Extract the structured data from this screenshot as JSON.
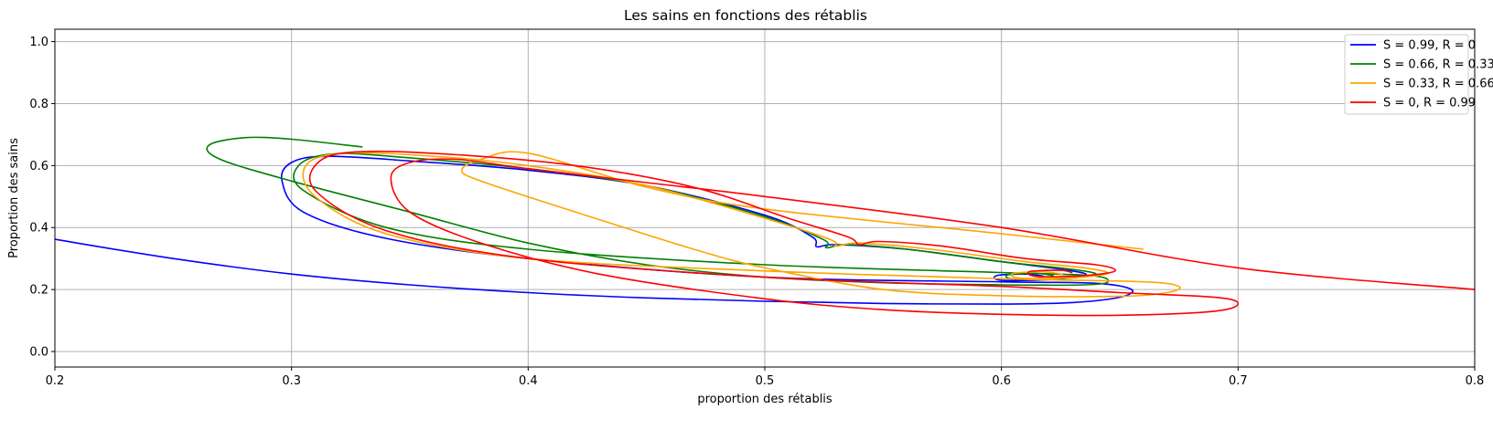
{
  "chart_data": {
    "type": "line",
    "title": "Les sains en fonctions des rétablis",
    "xlabel": "proportion des rétablis",
    "ylabel": "Proportion des sains",
    "xlim": [
      0.2,
      0.8
    ],
    "ylim": [
      -0.05,
      1.04
    ],
    "xticks": [
      "0.2",
      "0.3",
      "0.4",
      "0.5",
      "0.6",
      "0.7",
      "0.8"
    ],
    "yticks": [
      "0.0",
      "0.2",
      "0.4",
      "0.6",
      "0.8",
      "1.0"
    ],
    "grid": true,
    "legend_position": "top-right",
    "series": [
      {
        "name": "S = 0.99, R = 0",
        "color": "#0000ff",
        "points": [
          [
            0.2,
            0.362
          ],
          [
            0.25,
            0.3
          ],
          [
            0.3,
            0.25
          ],
          [
            0.35,
            0.215
          ],
          [
            0.4,
            0.19
          ],
          [
            0.45,
            0.173
          ],
          [
            0.5,
            0.162
          ],
          [
            0.55,
            0.155
          ],
          [
            0.6,
            0.153
          ],
          [
            0.63,
            0.158
          ],
          [
            0.65,
            0.175
          ],
          [
            0.655,
            0.2
          ],
          [
            0.64,
            0.22
          ],
          [
            0.6,
            0.225
          ],
          [
            0.5,
            0.24
          ],
          [
            0.4,
            0.3
          ],
          [
            0.34,
            0.365
          ],
          [
            0.305,
            0.45
          ],
          [
            0.296,
            0.55
          ],
          [
            0.3,
            0.61
          ],
          [
            0.315,
            0.63
          ],
          [
            0.35,
            0.615
          ],
          [
            0.4,
            0.585
          ],
          [
            0.45,
            0.535
          ],
          [
            0.5,
            0.44
          ],
          [
            0.52,
            0.37
          ],
          [
            0.522,
            0.338
          ],
          [
            0.53,
            0.345
          ],
          [
            0.56,
            0.33
          ],
          [
            0.6,
            0.29
          ],
          [
            0.63,
            0.26
          ],
          [
            0.635,
            0.245
          ],
          [
            0.62,
            0.232
          ],
          [
            0.6,
            0.23
          ],
          [
            0.598,
            0.245
          ],
          [
            0.61,
            0.25
          ],
          [
            0.618,
            0.243
          ]
        ]
      },
      {
        "name": "S = 0.66, R = 0.33",
        "color": "#008000",
        "points": [
          [
            0.33,
            0.66
          ],
          [
            0.3,
            0.685
          ],
          [
            0.28,
            0.69
          ],
          [
            0.265,
            0.665
          ],
          [
            0.27,
            0.62
          ],
          [
            0.3,
            0.55
          ],
          [
            0.35,
            0.45
          ],
          [
            0.4,
            0.35
          ],
          [
            0.45,
            0.28
          ],
          [
            0.5,
            0.24
          ],
          [
            0.55,
            0.222
          ],
          [
            0.6,
            0.215
          ],
          [
            0.635,
            0.215
          ],
          [
            0.645,
            0.225
          ],
          [
            0.638,
            0.245
          ],
          [
            0.6,
            0.255
          ],
          [
            0.5,
            0.28
          ],
          [
            0.4,
            0.33
          ],
          [
            0.34,
            0.4
          ],
          [
            0.305,
            0.52
          ],
          [
            0.303,
            0.6
          ],
          [
            0.318,
            0.638
          ],
          [
            0.35,
            0.625
          ],
          [
            0.4,
            0.59
          ],
          [
            0.45,
            0.535
          ],
          [
            0.5,
            0.435
          ],
          [
            0.525,
            0.36
          ],
          [
            0.526,
            0.335
          ],
          [
            0.535,
            0.345
          ],
          [
            0.56,
            0.33
          ],
          [
            0.6,
            0.29
          ],
          [
            0.63,
            0.265
          ],
          [
            0.64,
            0.248
          ],
          [
            0.625,
            0.235
          ],
          [
            0.605,
            0.234
          ],
          [
            0.603,
            0.248
          ],
          [
            0.615,
            0.252
          ],
          [
            0.622,
            0.245
          ]
        ]
      },
      {
        "name": "S = 0.33, R = 0.66",
        "color": "#ffa500",
        "points": [
          [
            0.66,
            0.33
          ],
          [
            0.6,
            0.38
          ],
          [
            0.5,
            0.46
          ],
          [
            0.45,
            0.53
          ],
          [
            0.4,
            0.64
          ],
          [
            0.38,
            0.62
          ],
          [
            0.372,
            0.585
          ],
          [
            0.38,
            0.55
          ],
          [
            0.42,
            0.45
          ],
          [
            0.47,
            0.33
          ],
          [
            0.5,
            0.27
          ],
          [
            0.55,
            0.2
          ],
          [
            0.6,
            0.18
          ],
          [
            0.65,
            0.178
          ],
          [
            0.67,
            0.19
          ],
          [
            0.675,
            0.21
          ],
          [
            0.66,
            0.225
          ],
          [
            0.6,
            0.235
          ],
          [
            0.5,
            0.26
          ],
          [
            0.4,
            0.3
          ],
          [
            0.34,
            0.38
          ],
          [
            0.31,
            0.5
          ],
          [
            0.306,
            0.6
          ],
          [
            0.322,
            0.64
          ],
          [
            0.36,
            0.63
          ],
          [
            0.4,
            0.6
          ],
          [
            0.45,
            0.535
          ],
          [
            0.5,
            0.43
          ],
          [
            0.528,
            0.36
          ],
          [
            0.53,
            0.34
          ],
          [
            0.54,
            0.35
          ],
          [
            0.57,
            0.33
          ],
          [
            0.61,
            0.29
          ],
          [
            0.635,
            0.27
          ],
          [
            0.645,
            0.252
          ],
          [
            0.63,
            0.238
          ],
          [
            0.608,
            0.237
          ],
          [
            0.605,
            0.252
          ],
          [
            0.618,
            0.257
          ],
          [
            0.626,
            0.249
          ]
        ]
      },
      {
        "name": "S = 0, R = 0.99",
        "color": "#ff0000",
        "points": [
          [
            0.8,
            0.2
          ],
          [
            0.7,
            0.27
          ],
          [
            0.6,
            0.4
          ],
          [
            0.5,
            0.5
          ],
          [
            0.45,
            0.545
          ],
          [
            0.4,
            0.59
          ],
          [
            0.37,
            0.62
          ],
          [
            0.35,
            0.61
          ],
          [
            0.342,
            0.56
          ],
          [
            0.35,
            0.45
          ],
          [
            0.38,
            0.35
          ],
          [
            0.43,
            0.25
          ],
          [
            0.5,
            0.17
          ],
          [
            0.55,
            0.135
          ],
          [
            0.6,
            0.12
          ],
          [
            0.65,
            0.117
          ],
          [
            0.69,
            0.13
          ],
          [
            0.7,
            0.155
          ],
          [
            0.69,
            0.175
          ],
          [
            0.65,
            0.19
          ],
          [
            0.6,
            0.21
          ],
          [
            0.5,
            0.24
          ],
          [
            0.4,
            0.3
          ],
          [
            0.34,
            0.39
          ],
          [
            0.31,
            0.52
          ],
          [
            0.312,
            0.615
          ],
          [
            0.33,
            0.645
          ],
          [
            0.37,
            0.635
          ],
          [
            0.42,
            0.6
          ],
          [
            0.47,
            0.53
          ],
          [
            0.51,
            0.43
          ],
          [
            0.535,
            0.37
          ],
          [
            0.54,
            0.345
          ],
          [
            0.548,
            0.355
          ],
          [
            0.575,
            0.34
          ],
          [
            0.61,
            0.3
          ],
          [
            0.64,
            0.28
          ],
          [
            0.648,
            0.26
          ],
          [
            0.635,
            0.245
          ],
          [
            0.615,
            0.242
          ],
          [
            0.612,
            0.258
          ],
          [
            0.625,
            0.262
          ],
          [
            0.63,
            0.254
          ]
        ]
      }
    ]
  }
}
